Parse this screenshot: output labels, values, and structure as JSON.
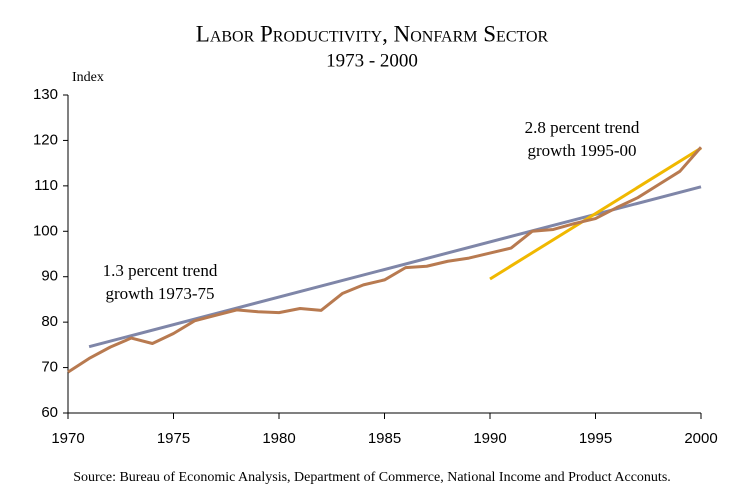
{
  "chart_data": {
    "type": "line",
    "title": "Labor Productivity, Nonfarm Sector",
    "subtitle": "1973 - 2000",
    "y_axis_label": "Index",
    "source": "Source: Bureau of Economic Analysis, Department of Commerce, National Income and Product Acconuts.",
    "xlim": [
      1970,
      2000
    ],
    "xticks": [
      1970,
      1975,
      1980,
      1985,
      1990,
      1995,
      2000
    ],
    "ylim": [
      60,
      130
    ],
    "yticks": [
      60,
      70,
      80,
      90,
      100,
      110,
      120,
      130
    ],
    "grid": false,
    "series": [
      {
        "color": "#7f86a8",
        "x": [
          1971,
          2000
        ],
        "values": [
          74.6,
          109.8
        ]
      },
      {
        "color": "#f0b800",
        "x": [
          1990,
          2000
        ],
        "values": [
          89.5,
          118.3
        ]
      },
      {
        "color": "#b87a50",
        "x": [
          1970,
          1971,
          1972,
          1973,
          1974,
          1975,
          1976,
          1977,
          1978,
          1979,
          1980,
          1981,
          1982,
          1983,
          1984,
          1985,
          1986,
          1987,
          1988,
          1989,
          1990,
          1991,
          1992,
          1993,
          1994,
          1995,
          1996,
          1997,
          1998,
          1999,
          2000
        ],
        "values": [
          69,
          72,
          74.5,
          76.5,
          75.3,
          77.5,
          80.3,
          81.5,
          82.7,
          82.3,
          82.1,
          83,
          82.6,
          86.3,
          88.2,
          89.3,
          92,
          92.3,
          93.4,
          94.1,
          95.2,
          96.3,
          100,
          100.4,
          101.7,
          102.8,
          105.2,
          107.4,
          110.3,
          113.2,
          118.5
        ]
      }
    ],
    "annotations": [
      {
        "lines": [
          "1.3 percent trend",
          "growth 1973-75"
        ]
      },
      {
        "lines": [
          "2.8 percent trend",
          "growth 1995-00"
        ]
      }
    ]
  }
}
